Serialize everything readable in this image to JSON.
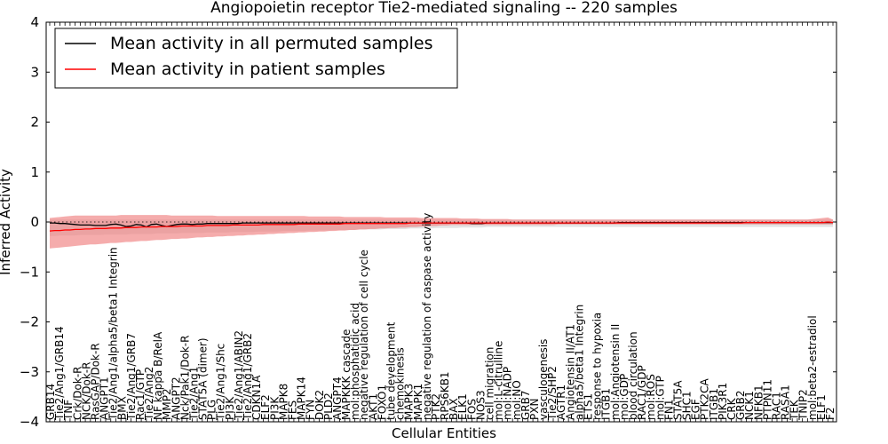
{
  "chart_data": {
    "type": "line",
    "title": "Angiopoietin receptor Tie2-mediated signaling -- 220 samples",
    "xlabel": "Cellular Entities",
    "ylabel": "Inferred Activity",
    "ylim": [
      -4,
      4
    ],
    "yticks": [
      -4,
      -3,
      -2,
      -1,
      0,
      1,
      2,
      3,
      4
    ],
    "n_points": 155,
    "legend_position": "top-left",
    "colors": {
      "permuted_line": "#000000",
      "patient_line": "#ff0000",
      "patient_band": "#f08080",
      "permuted_band": "#c0c0c0",
      "zero_line": "#000000"
    },
    "legend": [
      {
        "label": "Mean activity in all permuted samples",
        "color": "#000000"
      },
      {
        "label": "Mean activity in patient samples",
        "color": "#ff0000"
      }
    ],
    "x_tick_labels": [
      "GRB14",
      "Tie2/Ang1/GRB14",
      "TNF",
      "Crk/Dok-R",
      "NCK/Dok-R",
      "RasGAP/Dok-R",
      "ANGPT1",
      "Tie2/Ang1/alpha5/beta1 Integrin",
      "BMX",
      "Tie2/Ang1/GRB7",
      "Rac1/GTP",
      "Tie2/Ang2",
      "NF kappa B/RelA",
      "MMP2",
      "ANGPT2",
      "Nck/Pak1/Dok-R",
      "Tie2/Ang1",
      "STAT5A (dimer)",
      "PLG",
      "Tie2/Ang1/Shc",
      "PI3K",
      "Tie2/Ang1/ABIN2",
      "Tie2/Ang1/GRB2",
      "CDKN1A",
      "ELF2",
      "PI3K",
      "MAPK8",
      "FES",
      "MAPK14",
      "FYN",
      "DOK2",
      "PLD2",
      "ANGPT4",
      "MAPKKK cascade",
      "mol:phosphatidic acid",
      "negative regulation of cell cycle",
      "AKT1",
      "FOXO1",
      "tube development",
      "chemokinesis",
      "MAPK3",
      "MAPK1",
      "negative regulation of caspase activity",
      "PTK2",
      "RPS6KB1",
      "BAX",
      "ELK1",
      "FOS",
      "NOS3",
      "cell migration",
      "mol:L-citrulline",
      "mol:NADP",
      "mol:NO",
      "GRB7",
      "PXN",
      "vasculogenesis",
      "Tie2/SHP2",
      "AGTR1",
      "Angiotensin II/AT1",
      "alpha5/beta1 Integrin",
      "ETS1",
      "response to hypoxia",
      "ITGB1",
      "mol:Angiotensin II",
      "mol:GDP",
      "blood circulation",
      "RAC1/GDP",
      "mol:ROS",
      "mol:GTP",
      "FN1",
      "STAT5A",
      "SHC1",
      "EGF",
      "PTK2CA",
      "ITGB1",
      "PIK3R1",
      "CRK",
      "GRB2",
      "NCK1",
      "NFKB1",
      "PTPN11",
      "RAC1",
      "RASA1",
      "TEK",
      "TNIP2",
      "mol:beta2-estradiol",
      "ELF1",
      "F2"
    ],
    "series": [
      {
        "name": "Mean activity in all permuted samples",
        "values": [
          -0.02,
          -0.02,
          -0.03,
          -0.03,
          -0.04,
          -0.05,
          -0.06,
          -0.06,
          -0.06,
          -0.07,
          -0.07,
          -0.07,
          -0.05,
          -0.04,
          -0.06,
          -0.09,
          -0.08,
          -0.05,
          -0.06,
          -0.1,
          -0.05,
          -0.04,
          -0.07,
          -0.09,
          -0.07,
          -0.05,
          -0.04,
          -0.04,
          -0.05,
          -0.04,
          -0.04,
          -0.03,
          -0.03,
          -0.03,
          -0.03,
          -0.03,
          -0.03,
          -0.03,
          -0.02,
          -0.02,
          -0.02,
          -0.02,
          -0.02,
          -0.02,
          -0.02,
          -0.02,
          -0.02,
          -0.02,
          -0.02,
          -0.02,
          -0.02,
          -0.02,
          -0.02,
          -0.02,
          -0.02,
          -0.02,
          -0.02,
          -0.02,
          -0.02,
          -0.02,
          -0.02,
          -0.02,
          -0.02,
          -0.02,
          -0.02,
          -0.02,
          -0.02,
          -0.02,
          -0.02,
          -0.02,
          -0.02,
          -0.02,
          -0.02,
          -0.02,
          -0.02,
          -0.02,
          -0.02,
          -0.02,
          -0.02,
          -0.02,
          -0.02,
          -0.02,
          -0.02,
          -0.03,
          -0.03,
          -0.03,
          -0.02,
          -0.02,
          -0.02,
          -0.02,
          -0.02,
          -0.02,
          -0.02,
          -0.02,
          -0.02,
          -0.02,
          -0.02,
          -0.02,
          -0.02,
          -0.02,
          -0.02,
          -0.02,
          -0.02,
          -0.02,
          -0.02,
          -0.02,
          -0.02,
          -0.02,
          -0.02,
          -0.02,
          -0.02,
          -0.02,
          -0.01,
          -0.01,
          -0.01,
          -0.01,
          -0.01,
          -0.01,
          -0.01,
          -0.01,
          -0.01,
          -0.01,
          -0.01,
          -0.01,
          -0.01,
          -0.01,
          -0.01,
          -0.01,
          -0.01,
          -0.01,
          -0.01,
          -0.01,
          -0.01,
          -0.01,
          -0.01,
          -0.01,
          -0.01,
          -0.01,
          -0.01,
          -0.01,
          -0.01,
          -0.01,
          -0.01,
          -0.01,
          -0.01,
          -0.01,
          -0.01,
          -0.01,
          -0.01,
          -0.01,
          -0.01,
          -0.01,
          -0.01,
          -0.01,
          -0.01
        ],
        "lower": [
          -0.28,
          -0.28,
          -0.27,
          -0.27,
          -0.27,
          -0.27,
          -0.26,
          -0.26,
          -0.26,
          -0.26,
          -0.26,
          -0.25,
          -0.25,
          -0.25,
          -0.25,
          -0.25,
          -0.24,
          -0.24,
          -0.24,
          -0.24,
          -0.24,
          -0.23,
          -0.23,
          -0.23,
          -0.23,
          -0.23,
          -0.22,
          -0.22,
          -0.22,
          -0.22,
          -0.22,
          -0.21,
          -0.21,
          -0.21,
          -0.21,
          -0.21,
          -0.2,
          -0.2,
          -0.2,
          -0.2,
          -0.2,
          -0.19,
          -0.19,
          -0.19,
          -0.19,
          -0.19,
          -0.18,
          -0.18,
          -0.18,
          -0.18,
          -0.18,
          -0.17,
          -0.17,
          -0.17,
          -0.17,
          -0.17,
          -0.16,
          -0.16,
          -0.16,
          -0.16,
          -0.16,
          -0.15,
          -0.15,
          -0.15,
          -0.15,
          -0.15,
          -0.14,
          -0.14,
          -0.14,
          -0.14,
          -0.14,
          -0.13,
          -0.13,
          -0.13,
          -0.13,
          -0.13,
          -0.12,
          -0.12,
          -0.12,
          -0.12,
          -0.12,
          -0.11,
          -0.11,
          -0.11,
          -0.11,
          -0.11,
          -0.1,
          -0.1,
          -0.1,
          -0.1,
          -0.1,
          -0.1,
          -0.1,
          -0.1,
          -0.1,
          -0.1,
          -0.1,
          -0.1,
          -0.1,
          -0.1,
          -0.1,
          -0.1,
          -0.1,
          -0.1,
          -0.1,
          -0.1,
          -0.1,
          -0.1,
          -0.1,
          -0.1,
          -0.1,
          -0.1,
          -0.1,
          -0.1,
          -0.1,
          -0.1,
          -0.1,
          -0.1,
          -0.1,
          -0.1,
          -0.1,
          -0.1,
          -0.1,
          -0.1,
          -0.1,
          -0.1,
          -0.1,
          -0.1,
          -0.1,
          -0.1,
          -0.1,
          -0.1,
          -0.1,
          -0.1,
          -0.1,
          -0.1,
          -0.1,
          -0.1,
          -0.1,
          -0.1,
          -0.1,
          -0.1,
          -0.1,
          -0.1,
          -0.1,
          -0.1,
          -0.1,
          -0.1,
          -0.1,
          -0.1,
          -0.1,
          -0.1,
          -0.1,
          -0.1,
          -0.1
        ],
        "upper": [
          0.05,
          0.05,
          0.05,
          0.05,
          0.05,
          0.05,
          0.05,
          0.05,
          0.05,
          0.05,
          0.05,
          0.05,
          0.05,
          0.05,
          0.05,
          0.05,
          0.05,
          0.05,
          0.05,
          0.05,
          0.05,
          0.05,
          0.05,
          0.05,
          0.05,
          0.05,
          0.05,
          0.05,
          0.05,
          0.05,
          0.05,
          0.05,
          0.05,
          0.05,
          0.05,
          0.05,
          0.05,
          0.05,
          0.05,
          0.05,
          0.05,
          0.05,
          0.05,
          0.05,
          0.05,
          0.05,
          0.05,
          0.05,
          0.05,
          0.05,
          0.05,
          0.05,
          0.05,
          0.05,
          0.05,
          0.05,
          0.05,
          0.05,
          0.05,
          0.05,
          0.05,
          0.05,
          0.05,
          0.05,
          0.05,
          0.05,
          0.05,
          0.05,
          0.05,
          0.05,
          0.05,
          0.05,
          0.05,
          0.05,
          0.05,
          0.05,
          0.05,
          0.05,
          0.05,
          0.05,
          0.05,
          0.05,
          0.05,
          0.05,
          0.05,
          0.05,
          0.05,
          0.05,
          0.05,
          0.05,
          0.05,
          0.05,
          0.05,
          0.05,
          0.05,
          0.05,
          0.05,
          0.05,
          0.05,
          0.05,
          0.05,
          0.05,
          0.05,
          0.05,
          0.05,
          0.05,
          0.05,
          0.05,
          0.05,
          0.05,
          0.05,
          0.05,
          0.05,
          0.05,
          0.05,
          0.05,
          0.05,
          0.05,
          0.05,
          0.05,
          0.05,
          0.05,
          0.05,
          0.05,
          0.05,
          0.05,
          0.05,
          0.05,
          0.05,
          0.05,
          0.05,
          0.05,
          0.05,
          0.05,
          0.05,
          0.05,
          0.05,
          0.05,
          0.05,
          0.05,
          0.05,
          0.05,
          0.05,
          0.05,
          0.05,
          0.05,
          0.05,
          0.05,
          0.05,
          0.05,
          0.05,
          0.05,
          0.05,
          0.05,
          0.05
        ]
      },
      {
        "name": "Mean activity in patient samples",
        "values": [
          -0.18,
          -0.17,
          -0.17,
          -0.16,
          -0.16,
          -0.15,
          -0.15,
          -0.14,
          -0.14,
          -0.13,
          -0.13,
          -0.13,
          -0.12,
          -0.12,
          -0.12,
          -0.11,
          -0.11,
          -0.11,
          -0.1,
          -0.1,
          -0.1,
          -0.1,
          -0.09,
          -0.09,
          -0.09,
          -0.09,
          -0.08,
          -0.08,
          -0.08,
          -0.08,
          -0.08,
          -0.07,
          -0.07,
          -0.07,
          -0.07,
          -0.07,
          -0.06,
          -0.06,
          -0.06,
          -0.06,
          -0.06,
          -0.06,
          -0.05,
          -0.05,
          -0.05,
          -0.05,
          -0.05,
          -0.05,
          -0.05,
          -0.04,
          -0.04,
          -0.04,
          -0.04,
          -0.04,
          -0.04,
          -0.04,
          -0.04,
          -0.04,
          -0.03,
          -0.03,
          -0.03,
          -0.03,
          -0.03,
          -0.03,
          -0.03,
          -0.03,
          -0.03,
          -0.03,
          -0.03,
          -0.03,
          -0.03,
          -0.02,
          -0.02,
          -0.02,
          -0.02,
          -0.02,
          -0.02,
          -0.02,
          -0.02,
          -0.02,
          -0.02,
          -0.02,
          -0.02,
          -0.02,
          -0.02,
          -0.02,
          -0.02,
          -0.02,
          -0.02,
          -0.02,
          -0.02,
          -0.02,
          -0.02,
          -0.02,
          -0.02,
          -0.02,
          -0.02,
          -0.02,
          -0.02,
          -0.02,
          -0.02,
          -0.02,
          -0.02,
          -0.02,
          -0.02,
          -0.02,
          -0.02,
          -0.02,
          -0.02,
          -0.02,
          -0.02,
          -0.02,
          -0.02,
          -0.02,
          -0.02,
          -0.02,
          -0.02,
          -0.02,
          -0.02,
          -0.02,
          -0.02,
          -0.02,
          -0.02,
          -0.02,
          -0.02,
          -0.02,
          -0.02,
          -0.02,
          -0.02,
          -0.02,
          -0.02,
          -0.02,
          -0.02,
          -0.02,
          -0.02,
          -0.02,
          -0.02,
          -0.01,
          -0.01,
          -0.01,
          -0.01,
          -0.01,
          -0.01,
          -0.01,
          -0.01,
          -0.01,
          -0.01,
          -0.01,
          -0.01,
          -0.01,
          -0.01,
          -0.01,
          -0.01,
          0.0,
          -0.01
        ],
        "lower": [
          -0.53,
          -0.52,
          -0.51,
          -0.5,
          -0.49,
          -0.48,
          -0.47,
          -0.46,
          -0.45,
          -0.45,
          -0.44,
          -0.43,
          -0.42,
          -0.42,
          -0.41,
          -0.4,
          -0.4,
          -0.39,
          -0.38,
          -0.38,
          -0.37,
          -0.36,
          -0.36,
          -0.35,
          -0.34,
          -0.34,
          -0.33,
          -0.33,
          -0.32,
          -0.31,
          -0.31,
          -0.3,
          -0.3,
          -0.29,
          -0.29,
          -0.28,
          -0.28,
          -0.27,
          -0.27,
          -0.26,
          -0.26,
          -0.25,
          -0.25,
          -0.24,
          -0.24,
          -0.23,
          -0.23,
          -0.22,
          -0.22,
          -0.21,
          -0.21,
          -0.2,
          -0.2,
          -0.19,
          -0.19,
          -0.18,
          -0.18,
          -0.17,
          -0.17,
          -0.16,
          -0.16,
          -0.15,
          -0.15,
          -0.14,
          -0.14,
          -0.13,
          -0.13,
          -0.12,
          -0.12,
          -0.11,
          -0.11,
          -0.1,
          -0.1,
          -0.09,
          -0.09,
          -0.08,
          -0.08,
          -0.07,
          -0.07,
          -0.06,
          -0.06,
          -0.06,
          -0.06,
          -0.06,
          -0.06,
          -0.06,
          -0.06,
          -0.06,
          -0.06,
          -0.06,
          -0.06,
          -0.06,
          -0.06,
          -0.06,
          -0.06,
          -0.06,
          -0.06,
          -0.06,
          -0.06,
          -0.06,
          -0.05,
          -0.05,
          -0.05,
          -0.05,
          -0.05,
          -0.05,
          -0.05,
          -0.05,
          -0.05,
          -0.05,
          -0.05,
          -0.05,
          -0.05,
          -0.05,
          -0.05,
          -0.05,
          -0.05,
          -0.05,
          -0.05,
          -0.05,
          -0.05,
          -0.05,
          -0.05,
          -0.05,
          -0.05,
          -0.05,
          -0.05,
          -0.05,
          -0.05,
          -0.05,
          -0.05,
          -0.05,
          -0.05,
          -0.05,
          -0.05,
          -0.05,
          -0.05,
          -0.05,
          -0.05,
          -0.05,
          -0.05,
          -0.05,
          -0.05,
          -0.05,
          -0.05,
          -0.05,
          -0.05,
          -0.05,
          -0.05,
          -0.05,
          -0.05,
          -0.05,
          -0.05,
          -0.05,
          -0.05
        ],
        "upper": [
          0.08,
          0.09,
          0.1,
          0.11,
          0.12,
          0.13,
          0.13,
          0.13,
          0.13,
          0.13,
          0.13,
          0.13,
          0.13,
          0.13,
          0.14,
          0.14,
          0.14,
          0.14,
          0.14,
          0.14,
          0.14,
          0.14,
          0.14,
          0.14,
          0.13,
          0.13,
          0.13,
          0.13,
          0.13,
          0.13,
          0.13,
          0.13,
          0.13,
          0.12,
          0.12,
          0.12,
          0.12,
          0.12,
          0.12,
          0.12,
          0.12,
          0.12,
          0.12,
          0.12,
          0.12,
          0.12,
          0.12,
          0.12,
          0.12,
          0.12,
          0.12,
          0.11,
          0.11,
          0.11,
          0.11,
          0.11,
          0.11,
          0.11,
          0.1,
          0.1,
          0.1,
          0.1,
          0.1,
          0.1,
          0.1,
          0.1,
          0.09,
          0.09,
          0.09,
          0.09,
          0.09,
          0.09,
          0.09,
          0.08,
          0.08,
          0.08,
          0.08,
          0.08,
          0.08,
          0.08,
          0.08,
          0.07,
          0.07,
          0.07,
          0.07,
          0.06,
          0.06,
          0.06,
          0.06,
          0.06,
          0.06,
          0.05,
          0.05,
          0.05,
          0.05,
          0.05,
          0.05,
          0.05,
          0.05,
          0.05,
          0.05,
          0.05,
          0.05,
          0.05,
          0.05,
          0.05,
          0.05,
          0.05,
          0.05,
          0.05,
          0.05,
          0.05,
          0.05,
          0.05,
          0.05,
          0.05,
          0.05,
          0.05,
          0.05,
          0.05,
          0.05,
          0.05,
          0.05,
          0.05,
          0.05,
          0.05,
          0.05,
          0.05,
          0.05,
          0.05,
          0.05,
          0.05,
          0.05,
          0.05,
          0.05,
          0.05,
          0.05,
          0.05,
          0.05,
          0.05,
          0.05,
          0.05,
          0.05,
          0.05,
          0.05,
          0.05,
          0.05,
          0.05,
          0.05,
          0.05,
          0.06,
          0.07,
          0.08,
          0.09,
          0.05
        ]
      }
    ]
  }
}
